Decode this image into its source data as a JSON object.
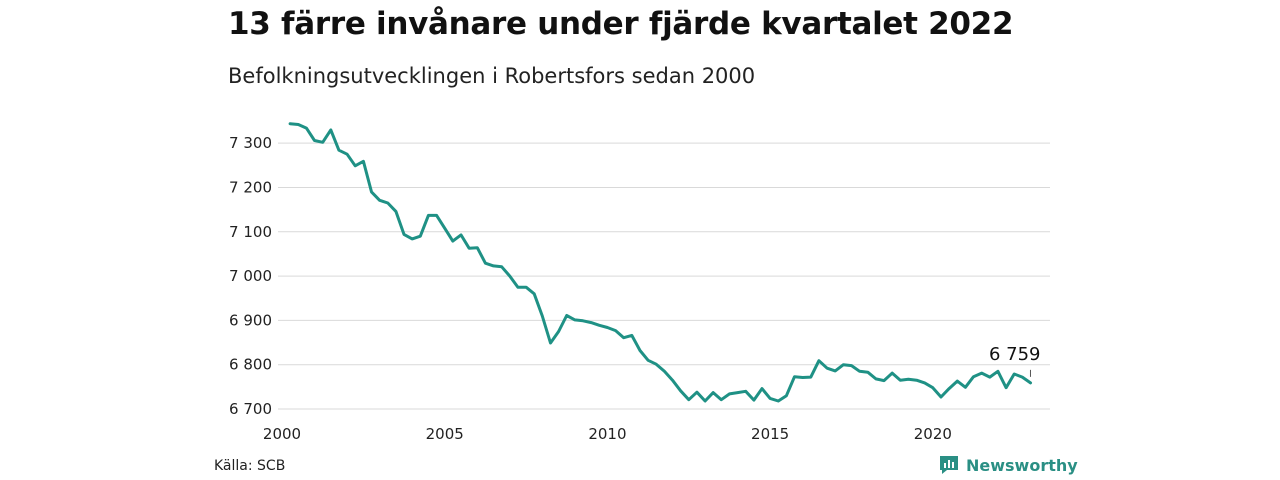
{
  "header": {
    "title": "13 färre invånare under fjärde kvartalet 2022",
    "subtitle": "Befolkningsutvecklingen i Robertsfors sedan 2000"
  },
  "footer": {
    "source": "Källa: SCB",
    "brand": "Newsworthy",
    "brand_icon": "chart-bubble-icon"
  },
  "colors": {
    "line": "#1f9185",
    "grid": "#d9d9d9",
    "brand": "#2a8f84"
  },
  "chart_data": {
    "type": "line",
    "title": "13 färre invånare under fjärde kvartalet 2022",
    "subtitle": "Befolkningsutvecklingen i Robertsfors sedan 2000",
    "xlabel": "",
    "ylabel": "",
    "xlim": [
      2000,
      2023.6
    ],
    "ylim": [
      6700,
      7350
    ],
    "x_ticks": [
      2000,
      2005,
      2010,
      2015,
      2020
    ],
    "x_tick_labels": [
      "2000",
      "2005",
      "2010",
      "2015",
      "2020"
    ],
    "y_ticks": [
      6700,
      6800,
      6900,
      7000,
      7100,
      7200,
      7300
    ],
    "y_tick_labels": [
      "6 700",
      "6 800",
      "6 900",
      "7 000",
      "7 100",
      "7 200",
      "7 300"
    ],
    "grid": "horizontal",
    "series": [
      {
        "name": "",
        "x": [
          2000.25,
          2000.5,
          2000.75,
          2001.0,
          2001.25,
          2001.5,
          2001.75,
          2002.0,
          2002.25,
          2002.5,
          2002.75,
          2003.0,
          2003.25,
          2003.5,
          2003.75,
          2004.0,
          2004.25,
          2004.5,
          2004.75,
          2005.0,
          2005.25,
          2005.5,
          2005.75,
          2006.0,
          2006.25,
          2006.5,
          2006.75,
          2007.0,
          2007.25,
          2007.5,
          2007.75,
          2008.0,
          2008.25,
          2008.5,
          2008.75,
          2009.0,
          2009.25,
          2009.5,
          2009.75,
          2010.0,
          2010.25,
          2010.5,
          2010.75,
          2011.0,
          2011.25,
          2011.5,
          2011.75,
          2012.0,
          2012.25,
          2012.5,
          2012.75,
          2013.0,
          2013.25,
          2013.5,
          2013.75,
          2014.0,
          2014.25,
          2014.5,
          2014.75,
          2015.0,
          2015.25,
          2015.5,
          2015.75,
          2016.0,
          2016.25,
          2016.5,
          2016.75,
          2017.0,
          2017.25,
          2017.5,
          2017.75,
          2018.0,
          2018.25,
          2018.5,
          2018.75,
          2019.0,
          2019.25,
          2019.5,
          2019.75,
          2020.0,
          2020.25,
          2020.5,
          2020.75,
          2021.0,
          2021.25,
          2021.5,
          2021.75,
          2022.0,
          2022.25,
          2022.5,
          2022.75,
          2023.0
        ],
        "values": [
          7344,
          7342,
          7334,
          7306,
          7302,
          7330,
          7284,
          7275,
          7249,
          7259,
          7190,
          7171,
          7165,
          7146,
          7094,
          7084,
          7090,
          7137,
          7137,
          7108,
          7079,
          7093,
          7063,
          7064,
          7029,
          7023,
          7021,
          7000,
          6975,
          6975,
          6960,
          6910,
          6849,
          6875,
          6911,
          6901,
          6899,
          6895,
          6889,
          6884,
          6877,
          6861,
          6866,
          6832,
          6810,
          6801,
          6785,
          6765,
          6741,
          6721,
          6738,
          6718,
          6737,
          6721,
          6734,
          6737,
          6740,
          6720,
          6746,
          6724,
          6718,
          6730,
          6773,
          6771,
          6772,
          6809,
          6792,
          6786,
          6800,
          6798,
          6785,
          6783,
          6768,
          6764,
          6781,
          6765,
          6767,
          6765,
          6759,
          6748,
          6727,
          6746,
          6763,
          6749,
          6773,
          6781,
          6772,
          6785,
          6748,
          6779,
          6772,
          6759
        ]
      }
    ],
    "annotations": [
      {
        "x": 2023.0,
        "y": 6759,
        "label": "6 759"
      }
    ]
  }
}
